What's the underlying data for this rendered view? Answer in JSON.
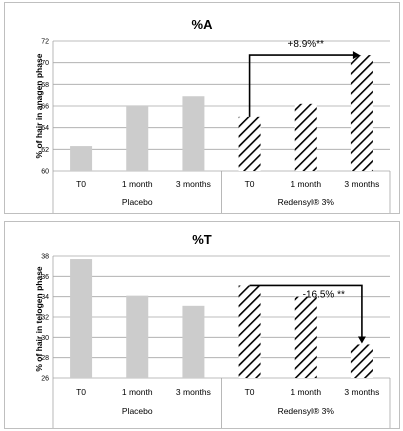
{
  "colors": {
    "placebo_bar": "#cccccc",
    "hatch_line": "#000000",
    "grid": "#a6a6a6",
    "annotation_arrow": "#000000"
  },
  "chart_data": [
    {
      "type": "bar",
      "title": "%A",
      "ylabel": "% of hair in anagen phase",
      "xlabel": "",
      "ylim": [
        60,
        72
      ],
      "yticks": [
        60,
        62,
        64,
        66,
        68,
        70,
        72
      ],
      "grid": true,
      "categories": [
        "T0",
        "1 month",
        "3 months",
        "T0",
        "1 month",
        "3 months"
      ],
      "groups": [
        "Placebo",
        "Redensyl® 3%"
      ],
      "series": [
        {
          "values": [
            62.3,
            66.0,
            66.9,
            65.0,
            66.2,
            70.7
          ],
          "styles": [
            "solid",
            "solid",
            "solid",
            "hatched",
            "hatched",
            "hatched"
          ]
        }
      ],
      "annotation": {
        "text": "+8.9%**",
        "from_index": 3,
        "to_index": 5
      }
    },
    {
      "type": "bar",
      "title": "%T",
      "ylabel": "% of hair in telogen phase",
      "xlabel": "",
      "ylim": [
        26,
        38
      ],
      "yticks": [
        26,
        28,
        30,
        32,
        34,
        36,
        38
      ],
      "grid": true,
      "categories": [
        "T0",
        "1 month",
        "3 months",
        "T0",
        "1 month",
        "3 months"
      ],
      "groups": [
        "Placebo",
        "Redensyl® 3%"
      ],
      "series": [
        {
          "values": [
            37.7,
            34.1,
            33.1,
            35.1,
            34.0,
            29.3
          ],
          "styles": [
            "solid",
            "solid",
            "solid",
            "hatched",
            "hatched",
            "hatched"
          ]
        }
      ],
      "annotation": {
        "text": "-16.5% **",
        "from_index": 3,
        "to_index": 5
      }
    }
  ]
}
